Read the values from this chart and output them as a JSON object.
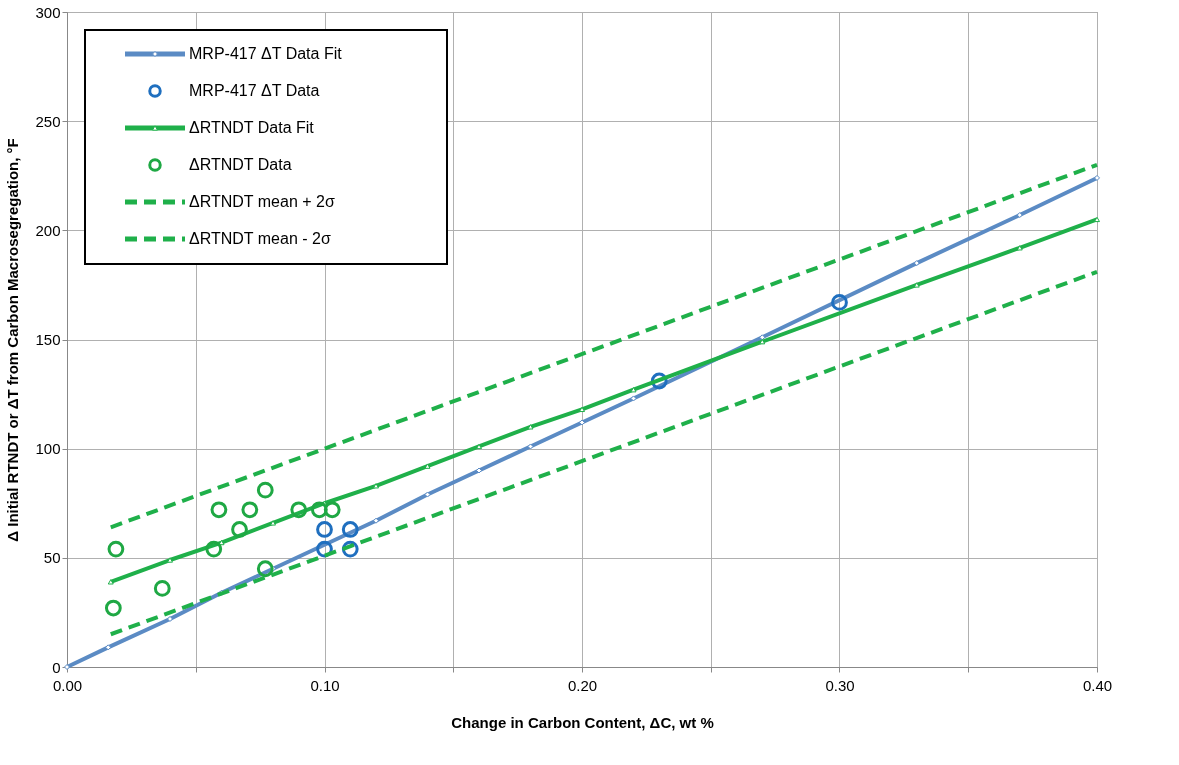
{
  "chart_data": {
    "type": "line",
    "xlabel": "Change in Carbon Content, ΔC, wt %",
    "ylabel": "Δ Initial RTNDT or ΔT from Carbon Macrosegregation, °F",
    "xlim": [
      0,
      0.4
    ],
    "ylim": [
      0,
      300
    ],
    "xticks": [
      {
        "value": 0,
        "label": "0.00"
      },
      {
        "value": 0.05,
        "label": null
      },
      {
        "value": 0.1,
        "label": "0.10"
      },
      {
        "value": 0.15,
        "label": null
      },
      {
        "value": 0.2,
        "label": "0.20"
      },
      {
        "value": 0.25,
        "label": null
      },
      {
        "value": 0.3,
        "label": "0.30"
      },
      {
        "value": 0.35,
        "label": null
      },
      {
        "value": 0.4,
        "label": "0.40"
      }
    ],
    "yticks": [
      0,
      50,
      100,
      150,
      200,
      250,
      300
    ],
    "grid": true,
    "legend": "top left",
    "series": [
      {
        "name": "MRP-417 ΔT Data Fit",
        "color": "#5b8bc4",
        "marker": "diamond",
        "line_style": "solid",
        "x": [
          0,
          0.016,
          0.04,
          0.06,
          0.08,
          0.12,
          0.14,
          0.16,
          0.18,
          0.2,
          0.22,
          0.27,
          0.33,
          0.37,
          0.4
        ],
        "values": [
          0,
          9,
          22,
          34,
          45,
          67,
          79,
          90,
          101,
          112,
          123,
          151,
          185,
          207,
          224
        ]
      },
      {
        "name": "MRP-417 ΔT Data",
        "type": "scatter",
        "color": "#1f6fbf",
        "marker": "circle",
        "x": [
          0.1,
          0.1,
          0.11,
          0.11,
          0.23,
          0.3
        ],
        "values": [
          63,
          54,
          63,
          54,
          131,
          167
        ]
      },
      {
        "name": "ΔRTNDT Data Fit",
        "color": "#1fb04a",
        "marker": "triangle",
        "line_style": "solid",
        "x": [
          0.017,
          0.04,
          0.06,
          0.08,
          0.1,
          0.12,
          0.14,
          0.16,
          0.18,
          0.2,
          0.22,
          0.27,
          0.33,
          0.37,
          0.4
        ],
        "values": [
          39,
          49,
          57,
          66,
          75,
          83,
          92,
          101,
          110,
          118,
          127,
          149,
          175,
          192,
          205
        ]
      },
      {
        "name": "ΔRTNDT Data",
        "type": "scatter",
        "color": "#1fa844",
        "marker": "circle",
        "x": [
          0.019,
          0.018,
          0.037,
          0.057,
          0.059,
          0.067,
          0.071,
          0.077,
          0.077,
          0.09,
          0.098,
          0.103
        ],
        "values": [
          54,
          27,
          36,
          54,
          72,
          63,
          72,
          81,
          45,
          72,
          72,
          72
        ]
      },
      {
        "name": "ΔRTNDT mean + 2σ",
        "color": "#1fb04a",
        "marker": "none",
        "line_style": "dashed",
        "x": [
          0.017,
          0.4
        ],
        "values": [
          64,
          230
        ]
      },
      {
        "name": "ΔRTNDT mean - 2σ",
        "color": "#1fb04a",
        "marker": "none",
        "line_style": "dashed",
        "x": [
          0.017,
          0.4
        ],
        "values": [
          15,
          181
        ]
      }
    ]
  }
}
